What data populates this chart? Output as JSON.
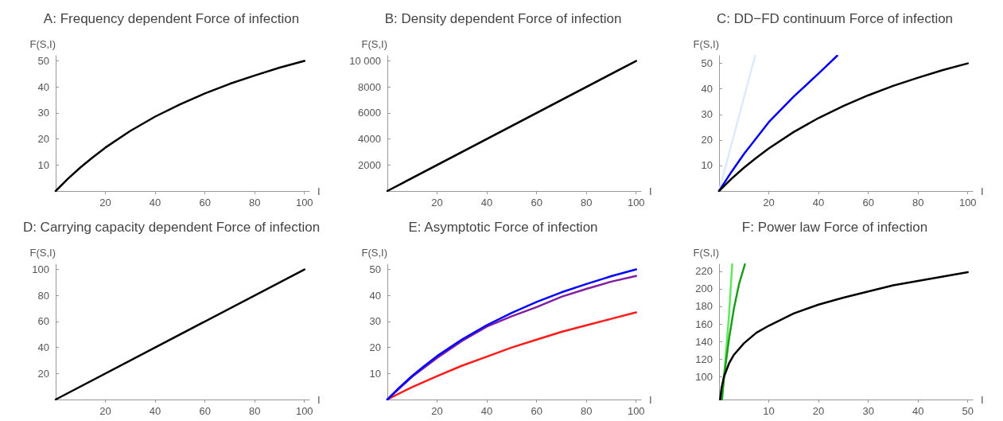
{
  "chart_data": [
    {
      "type": "line",
      "title": "A: Frequency dependent Force of infection",
      "xlabel": "I",
      "ylabel": "F(S,I)",
      "xlim": [
        0,
        102
      ],
      "ylim": [
        0,
        52
      ],
      "xticks": [
        20,
        40,
        60,
        80,
        100
      ],
      "yticks": [
        10,
        20,
        30,
        40,
        50
      ],
      "grid": false,
      "marker": "none",
      "series": [
        {
          "color": "#000000",
          "x": [
            0,
            5,
            10,
            15,
            20,
            30,
            40,
            50,
            60,
            70,
            80,
            90,
            100
          ],
          "values": [
            0,
            4.8,
            9.1,
            13,
            16.7,
            23.1,
            28.6,
            33.3,
            37.5,
            41.2,
            44.4,
            47.4,
            50
          ]
        }
      ]
    },
    {
      "type": "line",
      "title": "B: Density dependent Force of infection",
      "xlabel": "I",
      "ylabel": "F(S,I)",
      "xlim": [
        0,
        102
      ],
      "ylim": [
        0,
        10400
      ],
      "xticks": [
        20,
        40,
        60,
        80,
        100
      ],
      "yticks": [
        2000,
        4000,
        6000,
        8000,
        {
          "value": 10000,
          "label": "10 000"
        }
      ],
      "grid": false,
      "marker": "none",
      "series": [
        {
          "color": "#000000",
          "x": [
            0,
            100
          ],
          "values": [
            0,
            10000
          ]
        }
      ]
    },
    {
      "type": "line",
      "title": "C: DD−FD continuum Force of infection",
      "xlabel": "I",
      "ylabel": "F(S,I)",
      "xlim": [
        0,
        102
      ],
      "ylim": [
        0,
        53
      ],
      "xticks": [
        20,
        40,
        60,
        80,
        100
      ],
      "yticks": [
        10,
        20,
        30,
        40,
        50
      ],
      "grid": false,
      "marker": "none",
      "series": [
        {
          "color": "#dbeafc",
          "x": [
            0,
            14.5
          ],
          "values": [
            0,
            53
          ]
        },
        {
          "color": "#0000ee",
          "x": [
            0,
            5,
            10,
            20,
            30,
            40,
            47.5
          ],
          "values": [
            0,
            7.5,
            14.5,
            27,
            37,
            46,
            53
          ]
        },
        {
          "color": "#000000",
          "x": [
            0,
            5,
            10,
            15,
            20,
            30,
            40,
            50,
            60,
            70,
            80,
            90,
            100
          ],
          "values": [
            0,
            4.8,
            9.1,
            13,
            16.7,
            23.1,
            28.6,
            33.3,
            37.5,
            41.2,
            44.4,
            47.4,
            50
          ]
        }
      ]
    },
    {
      "type": "line",
      "title": "D: Carrying capacity dependent Force of infection",
      "xlabel": "I",
      "ylabel": "F(S,I)",
      "xlim": [
        0,
        102
      ],
      "ylim": [
        0,
        104
      ],
      "xticks": [
        20,
        40,
        60,
        80,
        100
      ],
      "yticks": [
        20,
        40,
        60,
        80,
        100
      ],
      "grid": false,
      "marker": "none",
      "series": [
        {
          "color": "#000000",
          "x": [
            0,
            100
          ],
          "values": [
            0,
            100
          ]
        }
      ]
    },
    {
      "type": "line",
      "title": "E: Asymptotic Force of infection",
      "xlabel": "I",
      "ylabel": "F(S,I)",
      "xlim": [
        0,
        102
      ],
      "ylim": [
        0,
        52
      ],
      "xticks": [
        20,
        40,
        60,
        80,
        100
      ],
      "yticks": [
        10,
        20,
        30,
        40,
        50
      ],
      "grid": false,
      "marker": "none",
      "series": [
        {
          "color": "#ff1a1a",
          "x": [
            0,
            10,
            20,
            30,
            40,
            50,
            60,
            70,
            80,
            90,
            100
          ],
          "values": [
            0,
            4.8,
            9,
            13,
            16.5,
            20,
            23,
            26,
            28.5,
            31,
            33.5
          ]
        },
        {
          "color": "#7f1f9f",
          "x": [
            0,
            10,
            20,
            30,
            40,
            50,
            60,
            70,
            80,
            90,
            100
          ],
          "values": [
            0,
            8.8,
            16,
            22.5,
            28,
            32,
            35.5,
            39.5,
            42.5,
            45.3,
            47.5
          ]
        },
        {
          "color": "#0000ff",
          "x": [
            0,
            5,
            10,
            15,
            20,
            30,
            40,
            50,
            60,
            70,
            80,
            90,
            100
          ],
          "values": [
            0,
            4.8,
            9.1,
            13,
            16.7,
            23.1,
            28.6,
            33.3,
            37.5,
            41.2,
            44.4,
            47.4,
            50
          ]
        }
      ]
    },
    {
      "type": "line",
      "title": "F: Power law Force of infection",
      "xlabel": "I",
      "ylabel": "F(S,I)",
      "xlim": [
        0,
        51
      ],
      "ylim": [
        74,
        228
      ],
      "xticks": [
        10,
        20,
        30,
        40,
        50
      ],
      "yticks": [
        100,
        120,
        140,
        160,
        180,
        200,
        220
      ],
      "grid": false,
      "marker": "none",
      "series": [
        {
          "color": "#5fe85f",
          "x": [
            0.45,
            1,
            2,
            2.65
          ],
          "values": [
            74,
            100,
            170,
            228
          ]
        },
        {
          "color": "#1a9e1a",
          "x": [
            0.6,
            1,
            2,
            3,
            4,
            5.2
          ],
          "values": [
            74,
            100,
            143,
            178,
            205,
            228
          ]
        },
        {
          "color": "#000000",
          "x": [
            0.22,
            0.5,
            1,
            2,
            3,
            5,
            7.5,
            10,
            15,
            20,
            25,
            30,
            35,
            40,
            45,
            50
          ],
          "values": [
            74,
            87,
            100,
            115,
            125,
            138,
            150,
            158,
            172,
            182,
            190,
            197,
            204,
            209,
            214,
            219
          ]
        }
      ]
    }
  ]
}
